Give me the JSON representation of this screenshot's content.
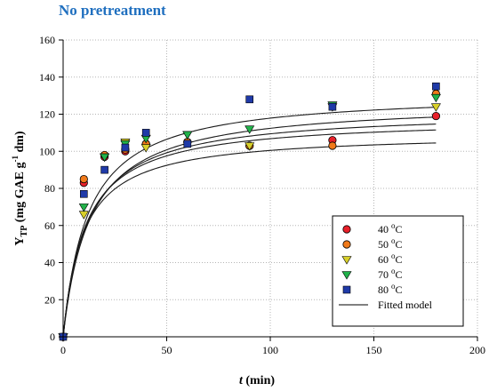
{
  "chart_data": {
    "type": "scatter",
    "title": "No pretreatment",
    "xlabel": {
      "italic": "t",
      "rest": " (min)"
    },
    "ylabel": {
      "main": "Y",
      "sub": "TP",
      "rest1": " (mg GAE g",
      "sup": "-1",
      "rest2": " dm)"
    },
    "xlim": [
      0,
      200
    ],
    "ylim": [
      0,
      160
    ],
    "xticks": [
      0,
      50,
      100,
      150,
      200
    ],
    "yticks": [
      0,
      20,
      40,
      60,
      80,
      100,
      120,
      140,
      160
    ],
    "grid": true,
    "legend_position": "bottom-right",
    "series": [
      {
        "name": "40 °C",
        "label_num": "40",
        "label_unit": "C",
        "marker": "circle",
        "color": "#e8202a",
        "points": [
          [
            0,
            0
          ],
          [
            10,
            83
          ],
          [
            20,
            97
          ],
          [
            30,
            100
          ],
          [
            40,
            104
          ],
          [
            60,
            105
          ],
          [
            90,
            103
          ],
          [
            130,
            106
          ],
          [
            180,
            119
          ]
        ],
        "fit": {
          "ymax": 110,
          "k": 9.5
        }
      },
      {
        "name": "50 °C",
        "label_num": "50",
        "label_unit": "C",
        "marker": "circle",
        "color": "#f07a1a",
        "points": [
          [
            0,
            0
          ],
          [
            10,
            85
          ],
          [
            20,
            98
          ],
          [
            30,
            101
          ],
          [
            40,
            104
          ],
          [
            60,
            105
          ],
          [
            90,
            103
          ],
          [
            130,
            103
          ],
          [
            180,
            131
          ]
        ],
        "fit": {
          "ymax": 118,
          "k": 10.5
        }
      },
      {
        "name": "60 °C",
        "label_num": "60",
        "label_unit": "C",
        "marker": "triangle-down",
        "color": "#d8d02a",
        "points": [
          [
            0,
            0
          ],
          [
            10,
            66
          ],
          [
            20,
            97
          ],
          [
            30,
            105
          ],
          [
            40,
            102
          ],
          [
            60,
            109
          ],
          [
            90,
            103
          ],
          [
            130,
            124
          ],
          [
            180,
            124
          ]
        ],
        "fit": {
          "ymax": 122,
          "k": 11.5
        }
      },
      {
        "name": "70 °C",
        "label_num": "70",
        "label_unit": "C",
        "marker": "triangle-down",
        "color": "#21b24a",
        "points": [
          [
            0,
            0
          ],
          [
            10,
            70
          ],
          [
            20,
            97
          ],
          [
            30,
            104
          ],
          [
            40,
            107
          ],
          [
            60,
            109
          ],
          [
            90,
            112
          ],
          [
            130,
            125
          ],
          [
            180,
            129
          ]
        ],
        "fit": {
          "ymax": 127,
          "k": 13
        }
      },
      {
        "name": "80 °C",
        "label_num": "80",
        "label_unit": "C",
        "marker": "square",
        "color": "#1f3aa8",
        "points": [
          [
            0,
            0
          ],
          [
            10,
            77
          ],
          [
            20,
            90
          ],
          [
            30,
            102
          ],
          [
            40,
            110
          ],
          [
            60,
            104
          ],
          [
            90,
            128
          ],
          [
            130,
            124
          ],
          [
            180,
            135
          ]
        ],
        "fit": {
          "ymax": 132,
          "k": 12
        }
      }
    ],
    "fitted_model_label": "Fitted model"
  }
}
